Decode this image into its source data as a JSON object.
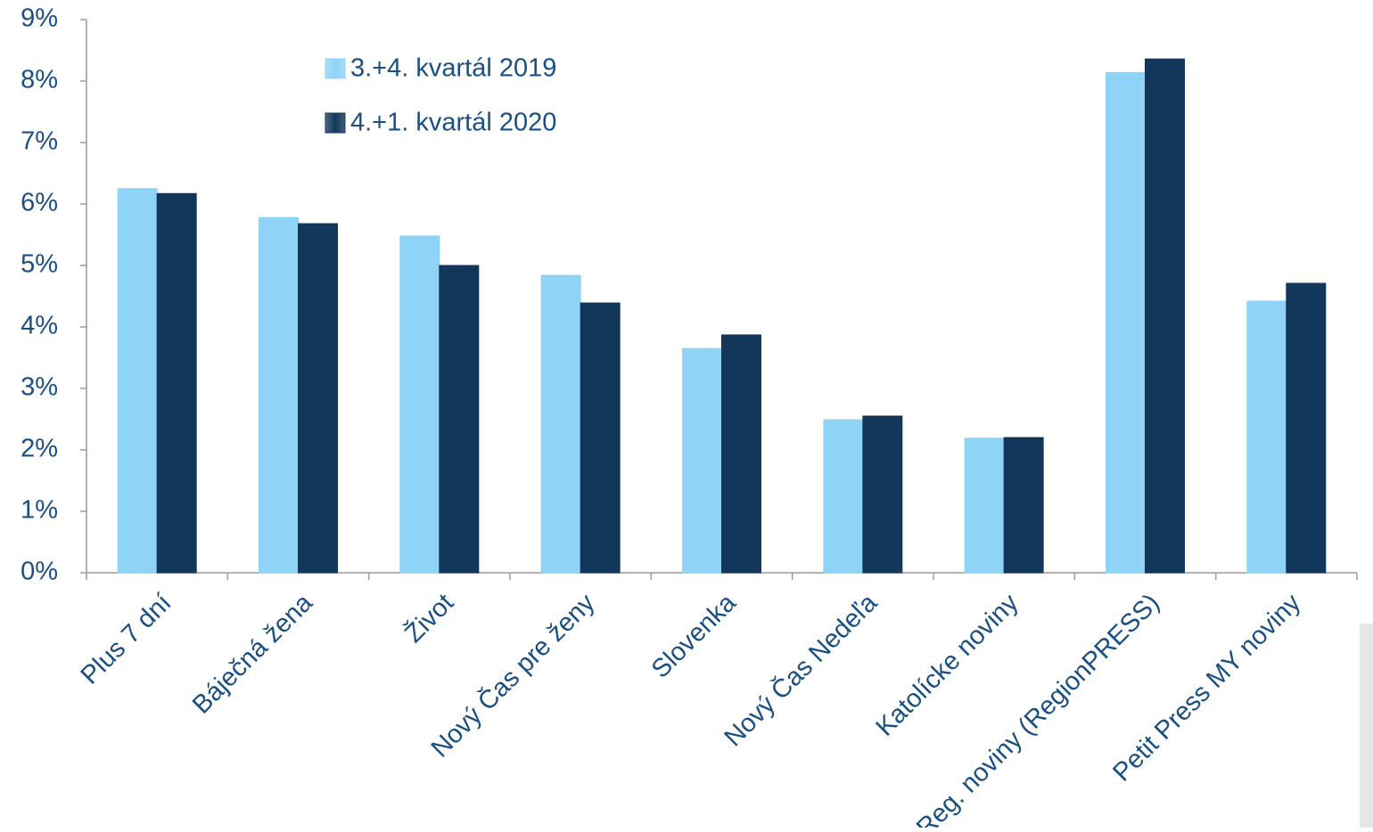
{
  "chart_data": {
    "type": "bar",
    "categories": [
      "Plus 7 dní",
      "Báječná žena",
      "Život",
      "Nový Čas pre ženy",
      "Slovenka",
      "Nový Čas Nedeľa",
      "Katolícke noviny",
      "Reg. noviny (RegionPRESS)",
      "Petit Press MY noviny"
    ],
    "series": [
      {
        "name": "3.+4. kvartál 2019",
        "color": "#8fd3f7",
        "values": [
          6.25,
          5.78,
          5.48,
          4.84,
          3.65,
          2.49,
          2.19,
          8.14,
          4.42
        ]
      },
      {
        "name": "4.+1. kvartál 2020",
        "color": "#12375a",
        "values": [
          6.17,
          5.68,
          5.0,
          4.39,
          3.87,
          2.55,
          2.2,
          8.36,
          4.71
        ]
      }
    ],
    "ylim": [
      0,
      9
    ],
    "yticks": [
      {
        "value": 0,
        "label": "0%"
      },
      {
        "value": 1,
        "label": "1%"
      },
      {
        "value": 2,
        "label": "2%"
      },
      {
        "value": 3,
        "label": "3%"
      },
      {
        "value": 4,
        "label": "4%"
      },
      {
        "value": 5,
        "label": "5%"
      },
      {
        "value": 6,
        "label": "6%"
      },
      {
        "value": 7,
        "label": "7%"
      },
      {
        "value": 8,
        "label": "8%"
      },
      {
        "value": 9,
        "label": "9%"
      }
    ],
    "grid": false,
    "legend": "upper left"
  }
}
